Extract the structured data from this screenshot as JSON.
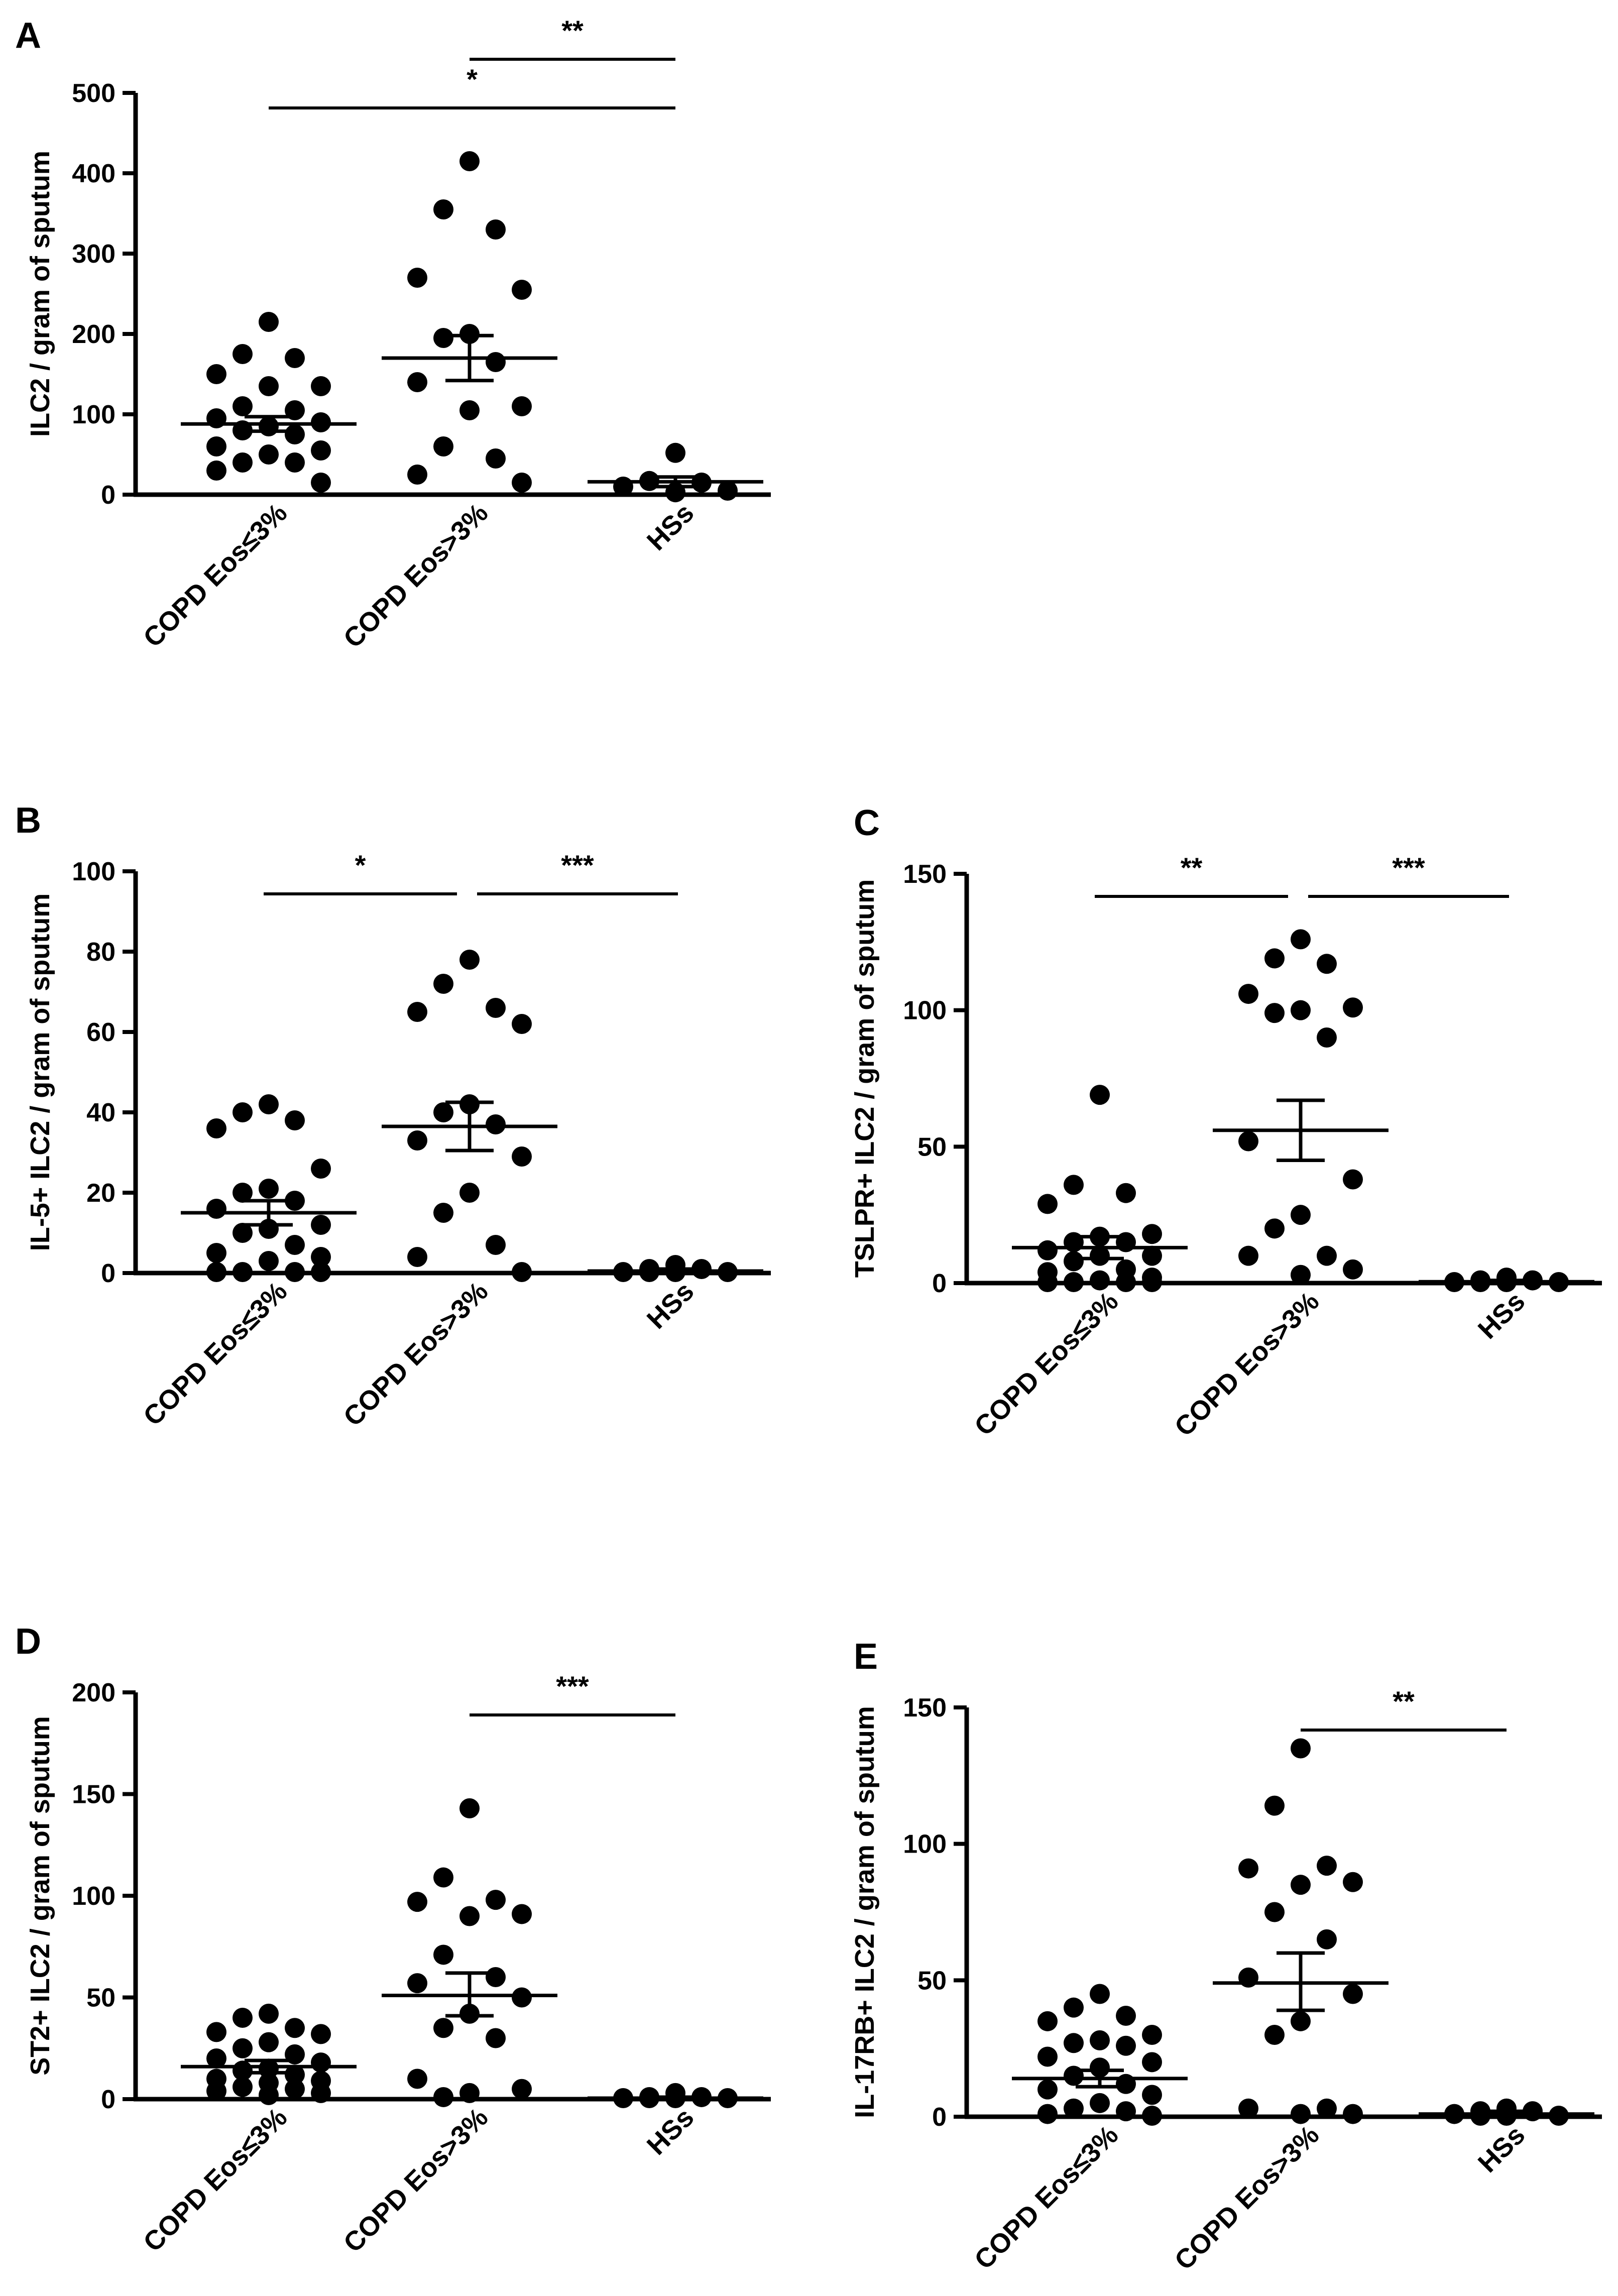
{
  "chart_data": [
    {
      "id": "A",
      "type": "scatter",
      "panel_label": "A",
      "ylabel": "ILC2 / gram of sputum",
      "ylim": [
        0,
        500
      ],
      "yticks": [
        0,
        100,
        200,
        300,
        400,
        500
      ],
      "ytick_labels": [
        "0",
        "100",
        "200",
        "300",
        "400",
        "500"
      ],
      "categories": [
        "COPD Eos≤3%",
        "COPD Eos>3%",
        "HSs"
      ],
      "groups": [
        {
          "name": "COPD Eos≤3%",
          "mean": 88,
          "sem_low": 79,
          "sem_high": 97,
          "values": [
            215,
            175,
            170,
            150,
            135,
            135,
            110,
            105,
            95,
            90,
            85,
            80,
            75,
            60,
            55,
            50,
            40,
            40,
            30,
            15
          ]
        },
        {
          "name": "COPD Eos>3%",
          "mean": 170,
          "sem_low": 142,
          "sem_high": 198,
          "values": [
            415,
            355,
            330,
            270,
            255,
            200,
            195,
            165,
            140,
            110,
            105,
            60,
            45,
            25,
            15
          ]
        },
        {
          "name": "HSs",
          "mean": 16,
          "sem_low": 10,
          "sem_high": 22,
          "values": [
            52,
            17,
            15,
            10,
            5,
            3
          ]
        }
      ],
      "significance": [
        {
          "from": 1,
          "to": 2,
          "label": "**"
        },
        {
          "from": 0,
          "to": 2,
          "label": "*"
        }
      ]
    },
    {
      "id": "B",
      "type": "scatter",
      "panel_label": "B",
      "ylabel": "IL-5+ ILC2 / gram of sputum",
      "ylim": [
        0,
        100
      ],
      "yticks": [
        0,
        20,
        40,
        60,
        80,
        100
      ],
      "ytick_labels": [
        "0",
        "20",
        "40",
        "60",
        "80",
        "100"
      ],
      "categories": [
        "COPD Eos≤3%",
        "COPD Eos>3%",
        "HSs"
      ],
      "groups": [
        {
          "name": "COPD Eos≤3%",
          "mean": 15,
          "sem_low": 12,
          "sem_high": 18,
          "values": [
            42,
            40,
            38,
            36,
            26,
            21,
            20,
            18,
            16,
            12,
            11,
            10,
            7,
            5,
            4,
            3,
            0,
            0,
            0,
            0
          ]
        },
        {
          "name": "COPD Eos>3%",
          "mean": 36.5,
          "sem_low": 30.5,
          "sem_high": 42.5,
          "values": [
            78,
            72,
            66,
            65,
            62,
            42,
            40,
            37,
            33,
            29,
            20,
            15,
            7,
            4,
            0
          ]
        },
        {
          "name": "HSs",
          "mean": 0.5,
          "sem_low": 0,
          "sem_high": 1,
          "values": [
            2,
            1,
            1,
            0,
            0,
            0,
            0
          ]
        }
      ],
      "significance": [
        {
          "from": 0,
          "to": 1,
          "label": "*"
        },
        {
          "from": 1,
          "to": 2,
          "label": "***"
        }
      ]
    },
    {
      "id": "C",
      "type": "scatter",
      "panel_label": "C",
      "ylabel": "TSLPR+ ILC2 / gram of sputum",
      "ylim": [
        0,
        150
      ],
      "yticks": [
        0,
        50,
        100,
        150
      ],
      "ytick_labels": [
        "0",
        "50",
        "100",
        "150"
      ],
      "categories": [
        "COPD Eos≤3%",
        "COPD Eos>3%",
        "HSs"
      ],
      "groups": [
        {
          "name": "COPD Eos≤3%",
          "mean": 13,
          "sem_low": 9,
          "sem_high": 17,
          "values": [
            69,
            36,
            33,
            29,
            18,
            17,
            15,
            15,
            12,
            10,
            10,
            8,
            5,
            4,
            2,
            1,
            0,
            0,
            0,
            0
          ]
        },
        {
          "name": "COPD Eos>3%",
          "mean": 56,
          "sem_low": 45,
          "sem_high": 67,
          "values": [
            126,
            119,
            117,
            106,
            101,
            100,
            99,
            90,
            52,
            38,
            25,
            20,
            10,
            10,
            5,
            3
          ]
        },
        {
          "name": "HSs",
          "mean": 0.5,
          "sem_low": 0,
          "sem_high": 1,
          "values": [
            2,
            1,
            1,
            0,
            0,
            0,
            0
          ]
        }
      ],
      "significance": [
        {
          "from": 0,
          "to": 1,
          "label": "**"
        },
        {
          "from": 1,
          "to": 2,
          "label": "***"
        }
      ]
    },
    {
      "id": "D",
      "type": "scatter",
      "panel_label": "D",
      "ylabel": "ST2+ ILC2 / gram of sputum",
      "ylim": [
        0,
        200
      ],
      "yticks": [
        0,
        50,
        100,
        150,
        200
      ],
      "ytick_labels": [
        "0",
        "50",
        "100",
        "150",
        "200"
      ],
      "categories": [
        "COPD Eos≤3%",
        "COPD Eos>3%",
        "HSs"
      ],
      "groups": [
        {
          "name": "COPD Eos≤3%",
          "mean": 16,
          "sem_low": 13,
          "sem_high": 19,
          "values": [
            42,
            40,
            35,
            33,
            32,
            28,
            25,
            22,
            20,
            18,
            15,
            14,
            12,
            10,
            9,
            8,
            6,
            5,
            4,
            3,
            2
          ]
        },
        {
          "name": "COPD Eos>3%",
          "mean": 51,
          "sem_low": 41,
          "sem_high": 62,
          "values": [
            143,
            109,
            98,
            97,
            91,
            90,
            71,
            60,
            57,
            50,
            42,
            35,
            30,
            10,
            5,
            3,
            1
          ]
        },
        {
          "name": "HSs",
          "mean": 0.5,
          "sem_low": 0,
          "sem_high": 1,
          "values": [
            3,
            1,
            1,
            0,
            0,
            0,
            0
          ]
        }
      ],
      "significance": [
        {
          "from": 1,
          "to": 2,
          "label": "***"
        }
      ]
    },
    {
      "id": "E",
      "type": "scatter",
      "panel_label": "E",
      "ylabel": "IL-17RB+ ILC2 / gram of sputum",
      "ylim": [
        0,
        150
      ],
      "yticks": [
        0,
        50,
        100,
        150
      ],
      "ytick_labels": [
        "0",
        "50",
        "100",
        "150"
      ],
      "categories": [
        "COPD Eos≤3%",
        "COPD Eos>3%",
        "HSs"
      ],
      "groups": [
        {
          "name": "COPD Eos≤3%",
          "mean": 14,
          "sem_low": 11,
          "sem_high": 17,
          "values": [
            45,
            40,
            37,
            35,
            30,
            28,
            27,
            26,
            22,
            20,
            18,
            15,
            12,
            10,
            8,
            5,
            3,
            2,
            1,
            0
          ]
        },
        {
          "name": "COPD Eos>3%",
          "mean": 49,
          "sem_low": 39,
          "sem_high": 60,
          "values": [
            135,
            114,
            92,
            91,
            86,
            85,
            75,
            65,
            51,
            45,
            35,
            30,
            3,
            3,
            1,
            1
          ]
        },
        {
          "name": "HSs",
          "mean": 1,
          "sem_low": 0,
          "sem_high": 2,
          "values": [
            3,
            2,
            2,
            1,
            0,
            0,
            0
          ]
        }
      ],
      "significance": [
        {
          "from": 1,
          "to": 2,
          "label": "**"
        }
      ]
    }
  ]
}
